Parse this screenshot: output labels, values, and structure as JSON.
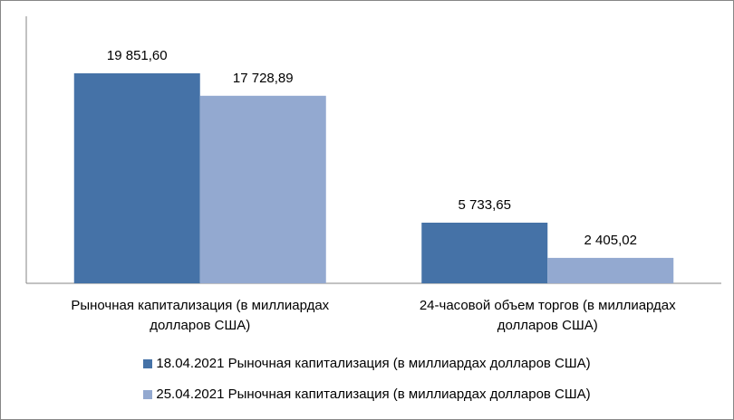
{
  "chart_data": {
    "type": "bar",
    "categories": [
      "Рыночная капитализация (в миллиардах долларов США)",
      "24-часовой объем торгов (в миллиардах долларов США)"
    ],
    "category_lines": [
      [
        "Рыночная капитализация (в миллиардах",
        "долларов США)"
      ],
      [
        "24-часовой объем торгов (в миллиардах",
        "долларов США)"
      ]
    ],
    "series": [
      {
        "name": "18.04.2021 Рыночная капитализация (в миллиардах долларов США)",
        "values": [
          19851.6,
          5733.65
        ],
        "labels": [
          "19 851,60",
          "5 733,65"
        ],
        "color": "#4572A7"
      },
      {
        "name": "25.04.2021 Рыночная капитализация (в миллиардах долларов США)",
        "values": [
          17728.89,
          2405.02
        ],
        "labels": [
          "17 728,89",
          "2 405,02"
        ],
        "color": "#93A9D0"
      }
    ],
    "ylim": [
      0,
      25000
    ],
    "grid": false,
    "legend_position": "bottom"
  }
}
